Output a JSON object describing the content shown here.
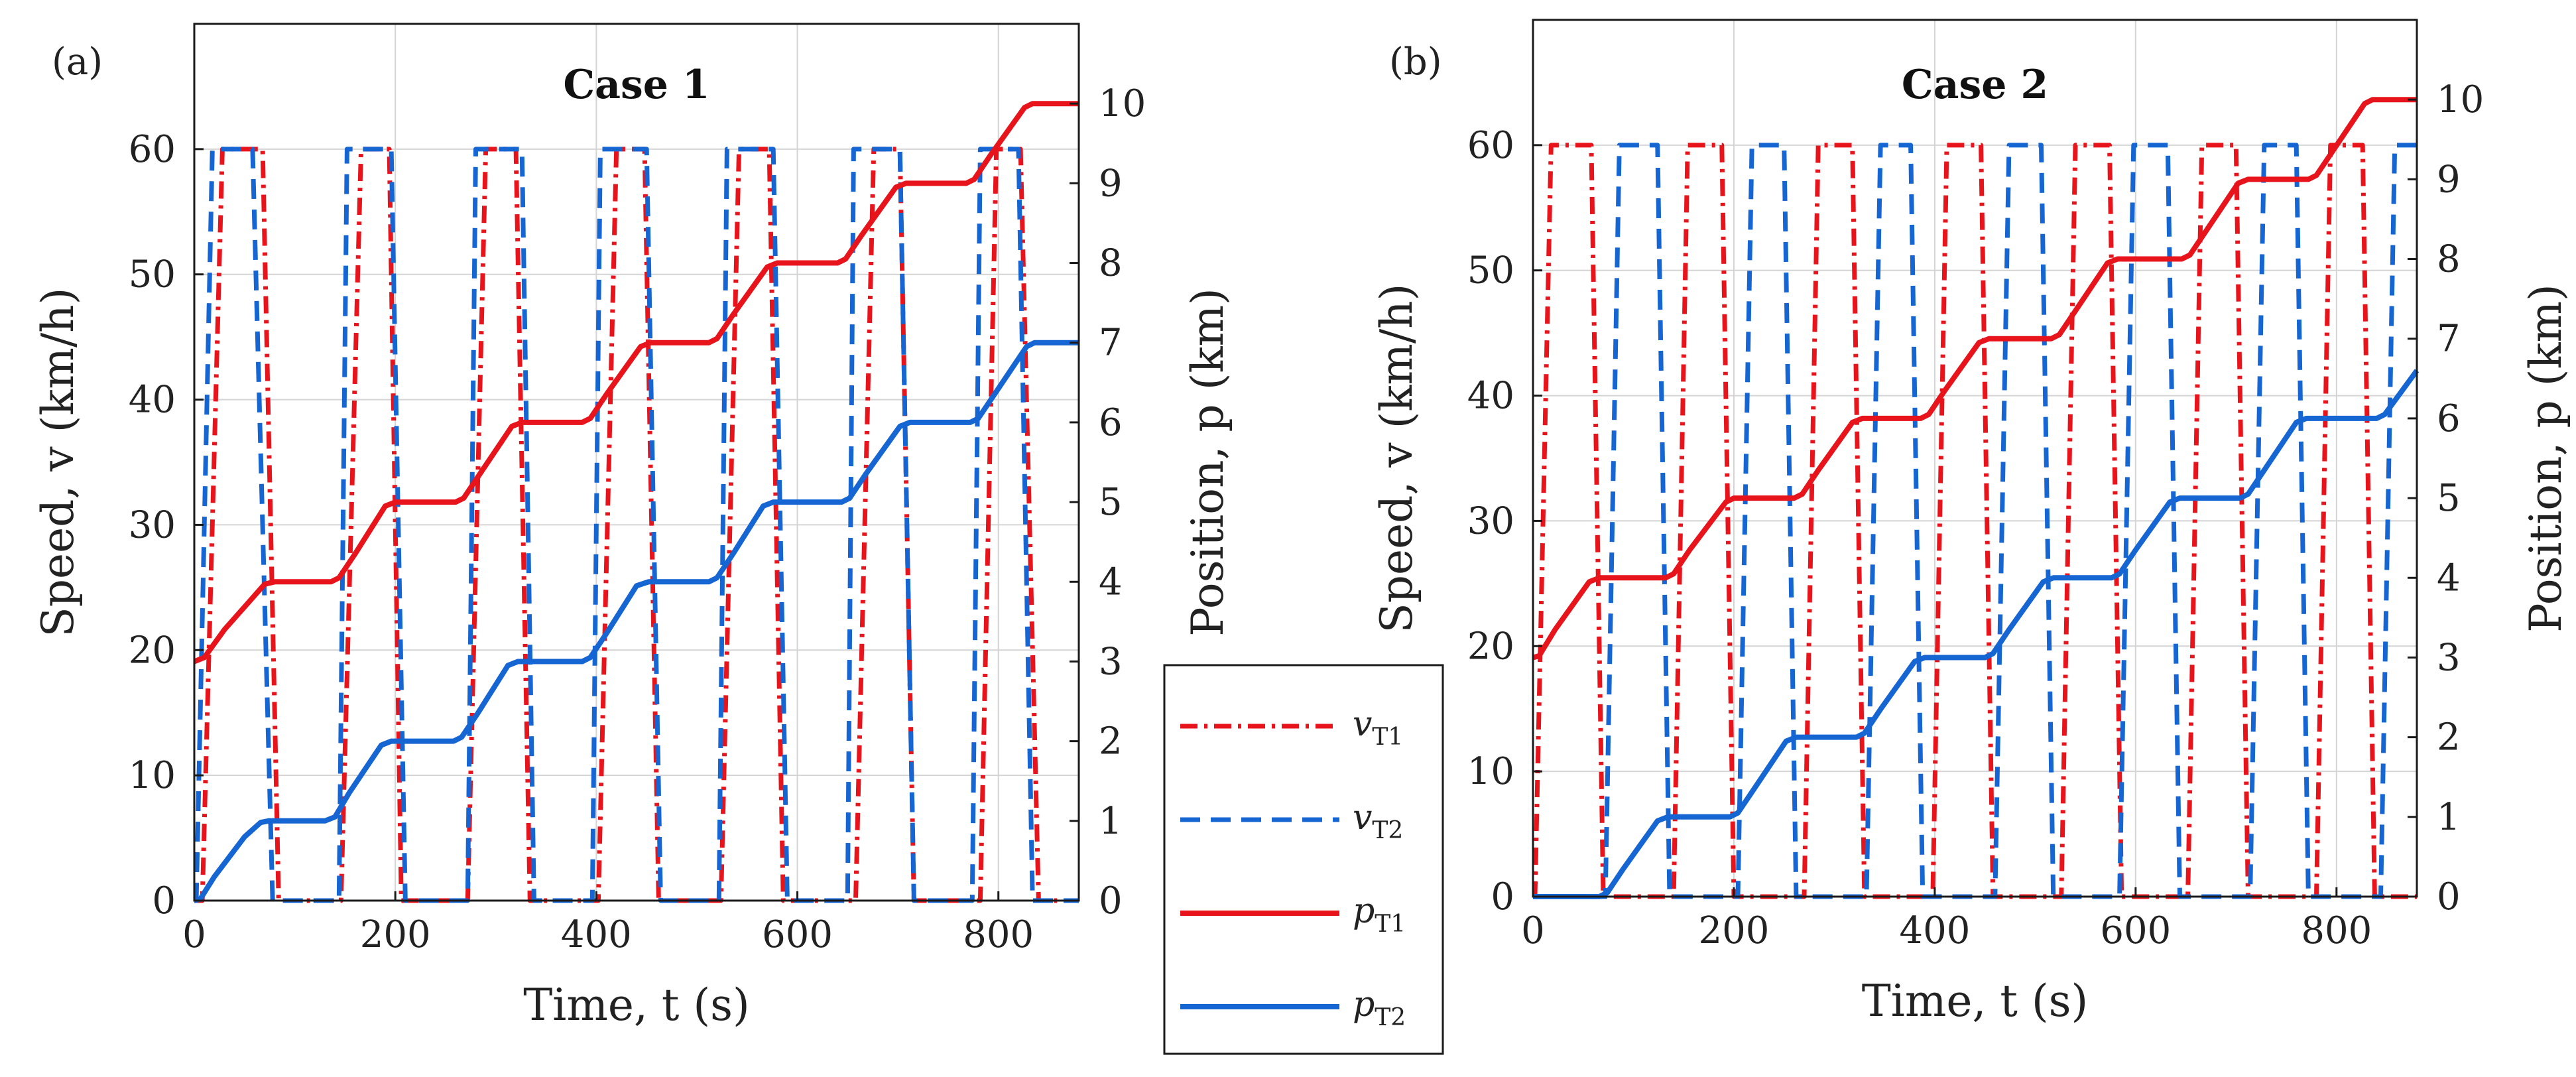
{
  "colors": {
    "red": "#e8141c",
    "blue": "#1565d2",
    "grid": "#d4d4d4",
    "axis": "#1a1a1a"
  },
  "legend": {
    "items": [
      {
        "series": "vT1",
        "base": "v",
        "sub": "T1",
        "dash": "dashdot",
        "color": "#e8141c"
      },
      {
        "series": "vT2",
        "base": "v",
        "sub": "T2",
        "dash": "dash",
        "color": "#1565d2"
      },
      {
        "series": "pT1",
        "base": "p",
        "sub": "T1",
        "dash": "solid",
        "color": "#e8141c"
      },
      {
        "series": "pT2",
        "base": "p",
        "sub": "T2",
        "dash": "solid",
        "color": "#1565d2"
      }
    ]
  },
  "chart_data": [
    {
      "panel": "(a)",
      "type": "line",
      "title": "Case 1",
      "xlabel": "Time, t (s)",
      "ylabel_left": "Speed, v (km/h)",
      "ylabel_right": "Position, p (km)",
      "xlim": [
        0,
        880
      ],
      "ylim_left": [
        0,
        70
      ],
      "ylim_right": [
        0,
        11
      ],
      "xticks": [
        0,
        200,
        400,
        600,
        800
      ],
      "yticks_left": [
        0,
        10,
        20,
        30,
        40,
        50,
        60
      ],
      "yticks_right": [
        0,
        1,
        2,
        3,
        4,
        5,
        6,
        7,
        8,
        9,
        10
      ],
      "grid": true,
      "series": [
        {
          "name": "vT1",
          "axis": "left",
          "style": "dashdot",
          "color": "#e8141c",
          "x": [
            0,
            8,
            28,
            48,
            68,
            84,
            130,
            146,
            166,
            194,
            206,
            260,
            272,
            290,
            320,
            334,
            390,
            402,
            420,
            448,
            462,
            512,
            524,
            542,
            572,
            586,
            646,
            658,
            676,
            702,
            716,
            770,
            782,
            798,
            822,
            840,
            880
          ],
          "y": [
            0,
            0,
            60,
            60,
            60,
            0,
            0,
            0,
            60,
            60,
            0,
            0,
            0,
            60,
            60,
            0,
            0,
            0,
            60,
            60,
            0,
            0,
            0,
            60,
            60,
            0,
            0,
            0,
            60,
            60,
            0,
            0,
            0,
            60,
            60,
            0,
            0
          ]
        },
        {
          "name": "vT2",
          "axis": "left",
          "style": "dash",
          "color": "#1565d2",
          "x": [
            0,
            2,
            18,
            58,
            78,
            88,
            144,
            152,
            196,
            210,
            272,
            280,
            326,
            338,
            396,
            404,
            450,
            464,
            522,
            530,
            576,
            590,
            650,
            656,
            702,
            716,
            774,
            782,
            820,
            834,
            880
          ],
          "y": [
            0,
            0,
            60,
            60,
            0,
            0,
            0,
            60,
            60,
            0,
            0,
            60,
            60,
            0,
            0,
            60,
            60,
            0,
            0,
            60,
            60,
            0,
            0,
            60,
            60,
            0,
            0,
            60,
            60,
            0,
            0
          ]
        },
        {
          "name": "pT1",
          "axis": "right",
          "style": "solid",
          "color": "#e8141c",
          "x": [
            0,
            10,
            30,
            70,
            80,
            136,
            144,
            160,
            190,
            200,
            260,
            268,
            284,
            316,
            326,
            386,
            394,
            410,
            444,
            454,
            512,
            520,
            536,
            570,
            580,
            640,
            648,
            664,
            698,
            708,
            768,
            776,
            792,
            826,
            834,
            880
          ],
          "y": [
            3,
            3.05,
            3.4,
            3.97,
            4,
            4,
            4.05,
            4.35,
            4.95,
            5,
            5,
            5.05,
            5.35,
            5.95,
            6,
            6,
            6.05,
            6.35,
            6.95,
            7,
            7,
            7.05,
            7.35,
            7.95,
            8,
            8,
            8.05,
            8.35,
            8.95,
            9,
            9,
            9.05,
            9.35,
            9.95,
            10,
            10
          ]
        },
        {
          "name": "pT2",
          "axis": "right",
          "style": "solid",
          "color": "#1565d2",
          "x": [
            0,
            6,
            20,
            50,
            66,
            74,
            130,
            140,
            154,
            186,
            196,
            258,
            266,
            282,
            312,
            322,
            386,
            394,
            410,
            440,
            452,
            512,
            520,
            536,
            566,
            576,
            644,
            652,
            668,
            702,
            712,
            772,
            780,
            796,
            828,
            836,
            880
          ],
          "y": [
            0,
            0.02,
            0.3,
            0.8,
            0.98,
            1,
            1,
            1.05,
            1.35,
            1.95,
            2,
            2,
            2.05,
            2.35,
            2.95,
            3,
            3,
            3.05,
            3.35,
            3.95,
            4,
            4,
            4.05,
            4.35,
            4.95,
            5,
            5,
            5.05,
            5.35,
            5.95,
            6,
            6,
            6.05,
            6.35,
            6.95,
            7,
            7
          ]
        }
      ]
    },
    {
      "panel": "(b)",
      "type": "line",
      "title": "Case 2",
      "xlabel": "Time, t (s)",
      "ylabel_left": "Speed, v (km/h)",
      "ylabel_right": "Position, p (km)",
      "xlim": [
        0,
        880
      ],
      "ylim_left": [
        0,
        70
      ],
      "ylim_right": [
        0,
        11
      ],
      "xticks": [
        0,
        200,
        400,
        600,
        800
      ],
      "yticks_left": [
        0,
        10,
        20,
        30,
        40,
        50,
        60
      ],
      "yticks_right": [
        0,
        1,
        2,
        3,
        4,
        5,
        6,
        7,
        8,
        9,
        10
      ],
      "grid": true,
      "series": [
        {
          "name": "vT1",
          "axis": "left",
          "style": "dashdot",
          "color": "#e8141c",
          "x": [
            0,
            2,
            18,
            58,
            70,
            132,
            140,
            154,
            188,
            200,
            262,
            270,
            284,
            318,
            330,
            390,
            398,
            412,
            446,
            458,
            518,
            526,
            540,
            574,
            586,
            644,
            652,
            666,
            700,
            712,
            772,
            780,
            794,
            826,
            838,
            880
          ],
          "y": [
            0,
            0,
            60,
            60,
            0,
            0,
            0,
            60,
            60,
            0,
            0,
            0,
            60,
            60,
            0,
            0,
            0,
            60,
            60,
            0,
            0,
            0,
            60,
            60,
            0,
            0,
            0,
            60,
            60,
            0,
            0,
            0,
            60,
            60,
            0,
            0
          ]
        },
        {
          "name": "vT2",
          "axis": "left",
          "style": "dash",
          "color": "#1565d2",
          "x": [
            0,
            64,
            72,
            86,
            124,
            136,
            196,
            204,
            218,
            250,
            262,
            324,
            332,
            346,
            376,
            388,
            452,
            460,
            474,
            506,
            518,
            576,
            584,
            598,
            632,
            644,
            706,
            714,
            728,
            760,
            772,
            836,
            844,
            858,
            880
          ],
          "y": [
            0,
            0,
            0,
            60,
            60,
            0,
            0,
            0,
            60,
            60,
            0,
            0,
            0,
            60,
            60,
            0,
            0,
            0,
            60,
            60,
            0,
            0,
            0,
            60,
            60,
            0,
            0,
            0,
            60,
            60,
            0,
            0,
            0,
            60,
            60
          ]
        },
        {
          "name": "pT1",
          "axis": "right",
          "style": "solid",
          "color": "#e8141c",
          "x": [
            0,
            6,
            22,
            56,
            66,
            132,
            140,
            156,
            192,
            200,
            260,
            268,
            284,
            318,
            328,
            386,
            394,
            410,
            444,
            454,
            516,
            524,
            540,
            572,
            582,
            646,
            654,
            670,
            702,
            712,
            772,
            780,
            796,
            828,
            836,
            880
          ],
          "y": [
            3,
            3.02,
            3.35,
            3.95,
            4,
            4,
            4.05,
            4.35,
            4.95,
            5,
            5,
            5.05,
            5.35,
            5.95,
            6,
            6,
            6.05,
            6.35,
            6.95,
            7,
            7,
            7.05,
            7.35,
            7.95,
            8,
            8,
            8.05,
            8.35,
            8.95,
            9,
            9,
            9.05,
            9.35,
            9.95,
            10,
            10
          ]
        },
        {
          "name": "pT2",
          "axis": "right",
          "style": "solid",
          "color": "#1565d2",
          "x": [
            0,
            66,
            74,
            90,
            124,
            134,
            196,
            204,
            220,
            252,
            262,
            322,
            330,
            346,
            380,
            390,
            450,
            458,
            474,
            508,
            518,
            576,
            584,
            600,
            634,
            644,
            704,
            712,
            728,
            760,
            770,
            840,
            848,
            880
          ],
          "y": [
            0,
            0,
            0.05,
            0.35,
            0.95,
            1,
            1,
            1.05,
            1.35,
            1.95,
            2,
            2,
            2.05,
            2.35,
            2.95,
            3,
            3,
            3.05,
            3.35,
            3.95,
            4,
            4,
            4.05,
            4.35,
            4.95,
            5,
            5,
            5.05,
            5.35,
            5.95,
            6,
            6,
            6.05,
            6.6
          ]
        }
      ]
    }
  ]
}
